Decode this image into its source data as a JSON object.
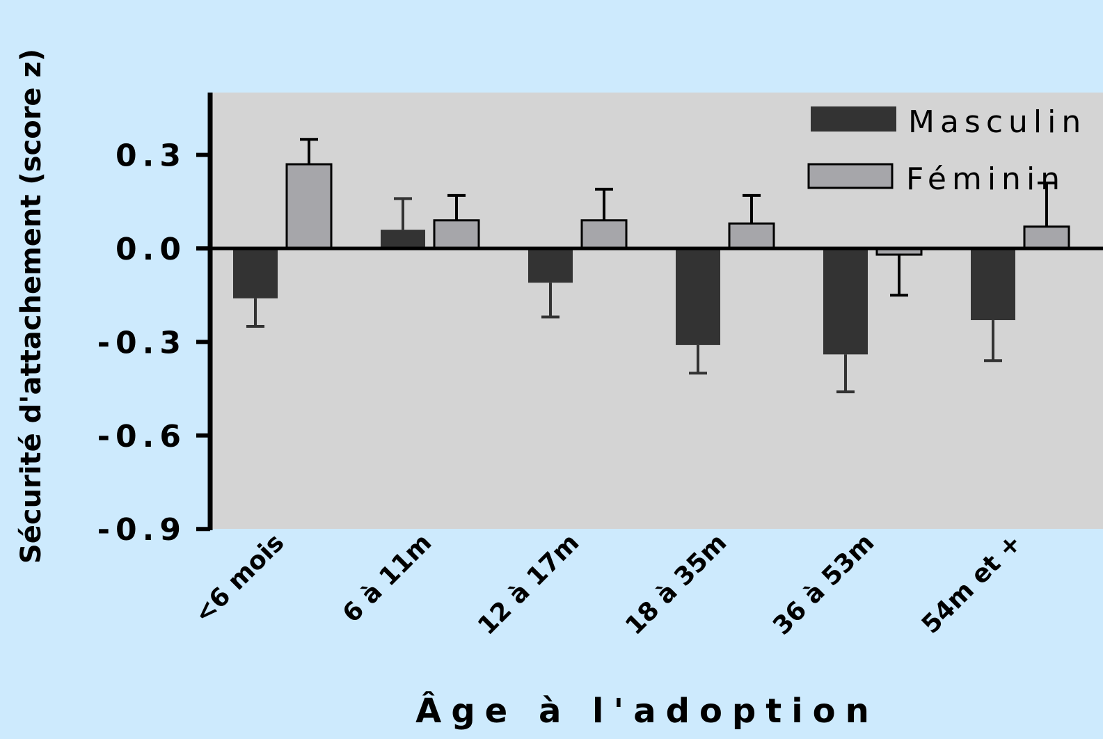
{
  "chart_data": {
    "type": "bar",
    "xlabel": "Âge à l'adoption",
    "ylabel": "Sécurité d'attachement (score z)",
    "categories": [
      "<6 mois",
      "6 à 11m",
      "12 à 17m",
      "18 à 35m",
      "36 à 53m",
      "54m et +"
    ],
    "series": [
      {
        "name": "Masculin",
        "color": "#333333",
        "values": [
          -0.16,
          0.06,
          -0.11,
          -0.31,
          -0.34,
          -0.23
        ],
        "error": [
          0.09,
          0.1,
          0.11,
          0.09,
          0.12,
          0.13
        ]
      },
      {
        "name": "Féminin",
        "color": "#a6a6aa",
        "values": [
          0.27,
          0.09,
          0.09,
          0.08,
          -0.02,
          0.07
        ],
        "error": [
          0.08,
          0.08,
          0.1,
          0.09,
          0.13,
          0.14
        ]
      }
    ],
    "ylim": [
      -0.9,
      0.5
    ],
    "yticks": [
      "0.3",
      "0.0",
      "-0.3",
      "-0.6",
      "-0.9"
    ],
    "grid": false,
    "legend_position": "top-right",
    "plot_background": "#d4d4d4",
    "page_background": "#cdeafd"
  }
}
